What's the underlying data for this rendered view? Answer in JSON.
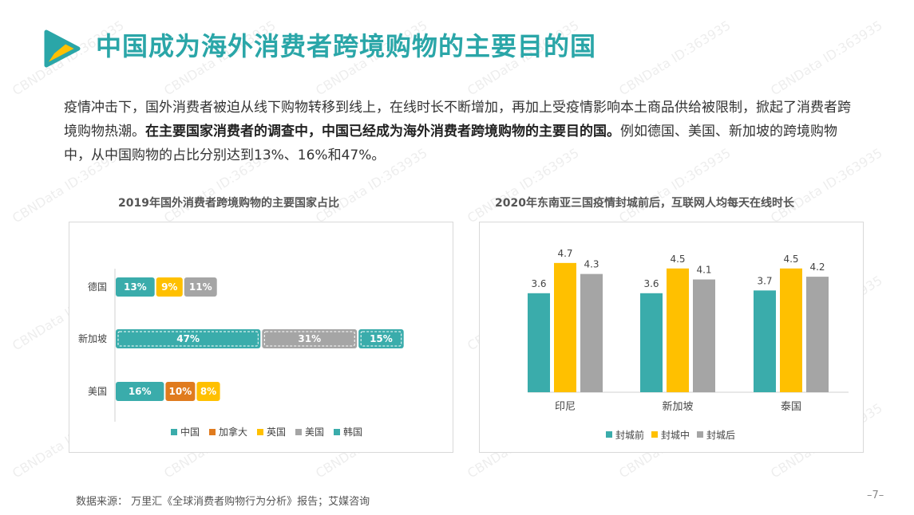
{
  "title": "中国成为海外消费者跨境购物的主要目的国",
  "intro": {
    "part1": "疫情冲击下，国外消费者被迫从线下购物转移到线上，在线时长不断增加，再加上受疫情影响本土商品供给被限制，掀起了消费者跨境购物热潮。",
    "bold": "在主要国家消费者的调查中，中国已经成为海外消费者跨境购物的主要目的国。",
    "part2": "例如德国、美国、新加坡的跨境购物中，从中国购物的占比分别达到13%、16%和47%。"
  },
  "footer": {
    "source": "数据来源： 万里汇《全球消费者购物行为分析》报告；艾媒咨询",
    "page": "–7–"
  },
  "watermark_text": "CBNData ID:363935",
  "colors": {
    "teal": "#3aacab",
    "orange": "#e07b1e",
    "yellow": "#ffc000",
    "gray": "#a5a5a5",
    "brand": "#2aa6a8"
  },
  "chart_data": [
    {
      "type": "bar",
      "orientation": "horizontal",
      "stacked": true,
      "title": "2019年国外消费者跨境购物的主要国家占比",
      "categories": [
        "德国",
        "新加坡",
        "美国"
      ],
      "unit": "%",
      "segments": {
        "德国": [
          {
            "series": "中国",
            "value": 13
          },
          {
            "series": "英国",
            "value": 9
          },
          {
            "series": "美国",
            "value": 11
          }
        ],
        "新加坡": [
          {
            "series": "中国",
            "value": 47
          },
          {
            "series": "美国",
            "value": 31
          },
          {
            "series": "韩国",
            "value": 15
          }
        ],
        "美国": [
          {
            "series": "中国",
            "value": 16
          },
          {
            "series": "加拿大",
            "value": 10
          },
          {
            "series": "英国",
            "value": 8
          }
        ]
      },
      "legend": [
        {
          "name": "中国",
          "color": "#3aacab"
        },
        {
          "name": "加拿大",
          "color": "#e07b1e"
        },
        {
          "name": "英国",
          "color": "#ffc000"
        },
        {
          "name": "美国",
          "color": "#a5a5a5"
        },
        {
          "name": "韩国",
          "color": "#3aacab"
        }
      ],
      "legend_position": "bottom"
    },
    {
      "type": "bar",
      "title": "2020年东南亚三国疫情封城前后，互联网人均每天在线时长",
      "categories": [
        "印尼",
        "新加坡",
        "泰国"
      ],
      "series": [
        {
          "name": "封城前",
          "color": "#3aacab",
          "values": [
            3.6,
            3.6,
            3.7
          ]
        },
        {
          "name": "封城中",
          "color": "#ffc000",
          "values": [
            4.7,
            4.5,
            4.5
          ]
        },
        {
          "name": "封城后",
          "color": "#a5a5a5",
          "values": [
            4.3,
            4.1,
            4.2
          ]
        }
      ],
      "ylim": [
        0,
        5.2
      ],
      "legend_position": "bottom"
    }
  ]
}
